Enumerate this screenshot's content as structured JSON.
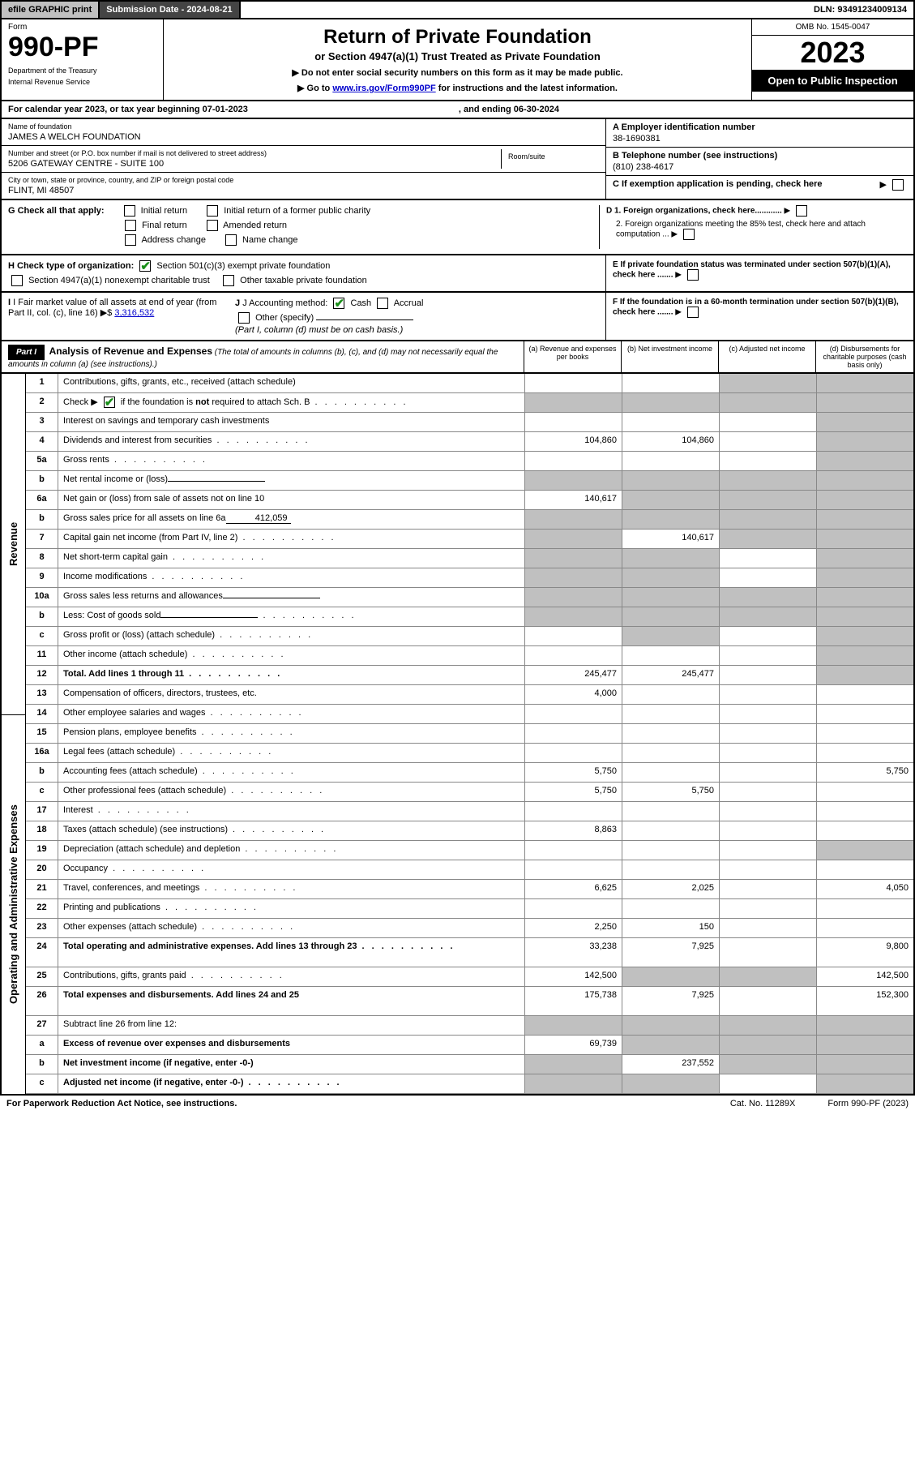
{
  "topbar": {
    "efile": "efile GRAPHIC print",
    "submission_label": "Submission Date - 2024-08-21",
    "dln": "DLN: 93491234009134"
  },
  "header": {
    "form_label": "Form",
    "form_number": "990-PF",
    "dept1": "Department of the Treasury",
    "dept2": "Internal Revenue Service",
    "title": "Return of Private Foundation",
    "subtitle": "or Section 4947(a)(1) Trust Treated as Private Foundation",
    "note1": "▶ Do not enter social security numbers on this form as it may be made public.",
    "note2_pre": "▶ Go to ",
    "note2_link": "www.irs.gov/Form990PF",
    "note2_post": " for instructions and the latest information.",
    "omb": "OMB No. 1545-0047",
    "year": "2023",
    "open": "Open to Public Inspection"
  },
  "calyear": {
    "text": "For calendar year 2023, or tax year beginning 07-01-2023",
    "ending": ", and ending 06-30-2024"
  },
  "info": {
    "name_label": "Name of foundation",
    "name": "JAMES A WELCH FOUNDATION",
    "addr_label": "Number and street (or P.O. box number if mail is not delivered to street address)",
    "addr": "5206 GATEWAY CENTRE - SUITE 100",
    "room_label": "Room/suite",
    "city_label": "City or town, state or province, country, and ZIP or foreign postal code",
    "city": "FLINT, MI  48507",
    "a_label": "A Employer identification number",
    "a_val": "38-1690381",
    "b_label": "B Telephone number (see instructions)",
    "b_val": "(810) 238-4617",
    "c_label": "C If exemption application is pending, check here"
  },
  "g": {
    "label": "G Check all that apply:",
    "initial": "Initial return",
    "initial_former": "Initial return of a former public charity",
    "final": "Final return",
    "amended": "Amended return",
    "addr_change": "Address change",
    "name_change": "Name change"
  },
  "d": {
    "d1": "D 1. Foreign organizations, check here............",
    "d2": "2. Foreign organizations meeting the 85% test, check here and attach computation ...",
    "e": "E  If private foundation status was terminated under section 507(b)(1)(A), check here .......",
    "f": "F  If the foundation is in a 60-month termination under section 507(b)(1)(B), check here ......."
  },
  "h": {
    "label": "H Check type of organization:",
    "opt1": "Section 501(c)(3) exempt private foundation",
    "opt2": "Section 4947(a)(1) nonexempt charitable trust",
    "opt3": "Other taxable private foundation"
  },
  "i": {
    "label": "I Fair market value of all assets at end of year (from Part II, col. (c), line 16)",
    "val": "3,316,532"
  },
  "j": {
    "label": "J Accounting method:",
    "cash": "Cash",
    "accrual": "Accrual",
    "other": "Other (specify)",
    "note": "(Part I, column (d) must be on cash basis.)"
  },
  "part1": {
    "label": "Part I",
    "title": "Analysis of Revenue and Expenses",
    "desc": "(The total of amounts in columns (b), (c), and (d) may not necessarily equal the amounts in column (a) (see instructions).)",
    "col_a": "(a)  Revenue and expenses per books",
    "col_b": "(b)  Net investment income",
    "col_c": "(c)  Adjusted net income",
    "col_d": "(d)  Disbursements for charitable purposes (cash basis only)"
  },
  "sidebar": {
    "revenue": "Revenue",
    "expenses": "Operating and Administrative Expenses"
  },
  "rows": [
    {
      "n": "1",
      "t": "Contributions, gifts, grants, etc., received (attach schedule)",
      "a": "",
      "b": "",
      "c": "",
      "d": "",
      "shade": [
        "c",
        "d"
      ]
    },
    {
      "n": "2",
      "t": "Check ▶ ☑ if the foundation is not required to attach Sch. B",
      "dots": true,
      "a": "",
      "b": "",
      "c": "",
      "d": "",
      "shade": [
        "a",
        "b",
        "c",
        "d"
      ],
      "checkmark": true,
      "bold_checkbox": true
    },
    {
      "n": "3",
      "t": "Interest on savings and temporary cash investments",
      "a": "",
      "b": "",
      "c": "",
      "d": "",
      "shade": [
        "d"
      ]
    },
    {
      "n": "4",
      "t": "Dividends and interest from securities",
      "dots": true,
      "a": "104,860",
      "b": "104,860",
      "c": "",
      "d": "",
      "shade": [
        "d"
      ]
    },
    {
      "n": "5a",
      "t": "Gross rents",
      "dots": true,
      "a": "",
      "b": "",
      "c": "",
      "d": "",
      "shade": [
        "d"
      ]
    },
    {
      "n": "b",
      "t": "Net rental income or (loss)",
      "inline": true,
      "a": "",
      "b": "",
      "c": "",
      "d": "",
      "shade": [
        "a",
        "b",
        "c",
        "d"
      ]
    },
    {
      "n": "6a",
      "t": "Net gain or (loss) from sale of assets not on line 10",
      "a": "140,617",
      "b": "",
      "c": "",
      "d": "",
      "shade": [
        "b",
        "c",
        "d"
      ]
    },
    {
      "n": "b",
      "t": "Gross sales price for all assets on line 6a",
      "inline_val": "412,059",
      "a": "",
      "b": "",
      "c": "",
      "d": "",
      "shade": [
        "a",
        "b",
        "c",
        "d"
      ]
    },
    {
      "n": "7",
      "t": "Capital gain net income (from Part IV, line 2)",
      "dots": true,
      "a": "",
      "b": "140,617",
      "c": "",
      "d": "",
      "shade": [
        "a",
        "c",
        "d"
      ]
    },
    {
      "n": "8",
      "t": "Net short-term capital gain",
      "dots": true,
      "a": "",
      "b": "",
      "c": "",
      "d": "",
      "shade": [
        "a",
        "b",
        "d"
      ]
    },
    {
      "n": "9",
      "t": "Income modifications",
      "dots": true,
      "a": "",
      "b": "",
      "c": "",
      "d": "",
      "shade": [
        "a",
        "b",
        "d"
      ]
    },
    {
      "n": "10a",
      "t": "Gross sales less returns and allowances",
      "inline": true,
      "a": "",
      "b": "",
      "c": "",
      "d": "",
      "shade": [
        "a",
        "b",
        "c",
        "d"
      ]
    },
    {
      "n": "b",
      "t": "Less: Cost of goods sold",
      "dots": true,
      "inline": true,
      "a": "",
      "b": "",
      "c": "",
      "d": "",
      "shade": [
        "a",
        "b",
        "c",
        "d"
      ]
    },
    {
      "n": "c",
      "t": "Gross profit or (loss) (attach schedule)",
      "dots": true,
      "a": "",
      "b": "",
      "c": "",
      "d": "",
      "shade": [
        "b",
        "d"
      ]
    },
    {
      "n": "11",
      "t": "Other income (attach schedule)",
      "dots": true,
      "a": "",
      "b": "",
      "c": "",
      "d": "",
      "shade": [
        "d"
      ]
    },
    {
      "n": "12",
      "t": "Total. Add lines 1 through 11",
      "dots": true,
      "bold": true,
      "a": "245,477",
      "b": "245,477",
      "c": "",
      "d": "",
      "shade": [
        "d"
      ]
    },
    {
      "n": "13",
      "t": "Compensation of officers, directors, trustees, etc.",
      "a": "4,000",
      "b": "",
      "c": "",
      "d": ""
    },
    {
      "n": "14",
      "t": "Other employee salaries and wages",
      "dots": true,
      "a": "",
      "b": "",
      "c": "",
      "d": ""
    },
    {
      "n": "15",
      "t": "Pension plans, employee benefits",
      "dots": true,
      "a": "",
      "b": "",
      "c": "",
      "d": ""
    },
    {
      "n": "16a",
      "t": "Legal fees (attach schedule)",
      "dots": true,
      "a": "",
      "b": "",
      "c": "",
      "d": ""
    },
    {
      "n": "b",
      "t": "Accounting fees (attach schedule)",
      "dots": true,
      "a": "5,750",
      "b": "",
      "c": "",
      "d": "5,750"
    },
    {
      "n": "c",
      "t": "Other professional fees (attach schedule)",
      "dots": true,
      "a": "5,750",
      "b": "5,750",
      "c": "",
      "d": ""
    },
    {
      "n": "17",
      "t": "Interest",
      "dots": true,
      "a": "",
      "b": "",
      "c": "",
      "d": ""
    },
    {
      "n": "18",
      "t": "Taxes (attach schedule) (see instructions)",
      "dots": true,
      "a": "8,863",
      "b": "",
      "c": "",
      "d": ""
    },
    {
      "n": "19",
      "t": "Depreciation (attach schedule) and depletion",
      "dots": true,
      "a": "",
      "b": "",
      "c": "",
      "d": "",
      "shade": [
        "d"
      ]
    },
    {
      "n": "20",
      "t": "Occupancy",
      "dots": true,
      "a": "",
      "b": "",
      "c": "",
      "d": ""
    },
    {
      "n": "21",
      "t": "Travel, conferences, and meetings",
      "dots": true,
      "a": "6,625",
      "b": "2,025",
      "c": "",
      "d": "4,050"
    },
    {
      "n": "22",
      "t": "Printing and publications",
      "dots": true,
      "a": "",
      "b": "",
      "c": "",
      "d": ""
    },
    {
      "n": "23",
      "t": "Other expenses (attach schedule)",
      "dots": true,
      "a": "2,250",
      "b": "150",
      "c": "",
      "d": ""
    },
    {
      "n": "24",
      "t": "Total operating and administrative expenses. Add lines 13 through 23",
      "dots": true,
      "bold": true,
      "a": "33,238",
      "b": "7,925",
      "c": "",
      "d": "9,800",
      "tall": true
    },
    {
      "n": "25",
      "t": "Contributions, gifts, grants paid",
      "dots": true,
      "a": "142,500",
      "b": "",
      "c": "",
      "d": "142,500",
      "shade": [
        "b",
        "c"
      ]
    },
    {
      "n": "26",
      "t": "Total expenses and disbursements. Add lines 24 and 25",
      "bold": true,
      "a": "175,738",
      "b": "7,925",
      "c": "",
      "d": "152,300",
      "tall": true
    },
    {
      "n": "27",
      "t": "Subtract line 26 from line 12:",
      "a": "",
      "b": "",
      "c": "",
      "d": "",
      "shade": [
        "a",
        "b",
        "c",
        "d"
      ]
    },
    {
      "n": "a",
      "t": "Excess of revenue over expenses and disbursements",
      "bold": true,
      "a": "69,739",
      "b": "",
      "c": "",
      "d": "",
      "shade": [
        "b",
        "c",
        "d"
      ]
    },
    {
      "n": "b",
      "t": "Net investment income (if negative, enter -0-)",
      "bold": true,
      "a": "",
      "b": "237,552",
      "c": "",
      "d": "",
      "shade": [
        "a",
        "c",
        "d"
      ]
    },
    {
      "n": "c",
      "t": "Adjusted net income (if negative, enter -0-)",
      "dots": true,
      "bold": true,
      "a": "",
      "b": "",
      "c": "",
      "d": "",
      "shade": [
        "a",
        "b",
        "d"
      ]
    }
  ],
  "footer": {
    "left": "For Paperwork Reduction Act Notice, see instructions.",
    "mid": "Cat. No. 11289X",
    "right": "Form 990-PF (2023)"
  },
  "colors": {
    "shade": "#c0c0c0",
    "check_green": "#1a8f1a"
  }
}
